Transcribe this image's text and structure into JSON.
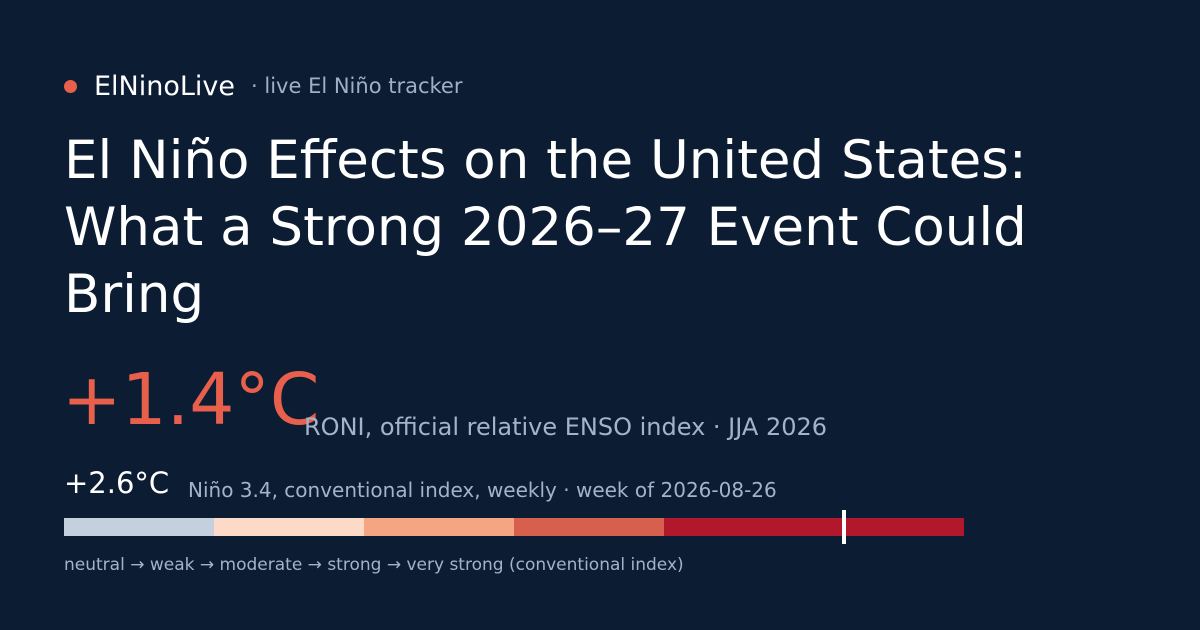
{
  "brand": {
    "name": "ElNinoLive",
    "tagline": "· live El Niño tracker",
    "dot_color": "#e8604c"
  },
  "headline": {
    "lines": [
      "El Niño Effects on the United States:",
      "What a Strong 2026–27 Event Could",
      "Bring"
    ]
  },
  "primary_index": {
    "value": "+1.4°C",
    "description": "RONI, official relative ENSO index · JJA 2026",
    "color": "#e8604c"
  },
  "secondary_index": {
    "value": "+2.6°C",
    "description": "Niño 3.4, conventional index, weekly · week of 2026-08-26"
  },
  "strength_scale": {
    "value_c": 2.6,
    "segments": [
      {
        "color": "#c5d0df",
        "from": 0.0,
        "to": 0.5
      },
      {
        "color": "#fdd9c8",
        "from": 0.5,
        "to": 1.0
      },
      {
        "color": "#f4a582",
        "from": 1.0,
        "to": 1.5
      },
      {
        "color": "#d6604d",
        "from": 1.5,
        "to": 2.0
      },
      {
        "color": "#b2182b",
        "from": 2.0,
        "to": 3.0
      }
    ],
    "legend": "neutral → weak → moderate → strong → very strong (conventional index)"
  }
}
